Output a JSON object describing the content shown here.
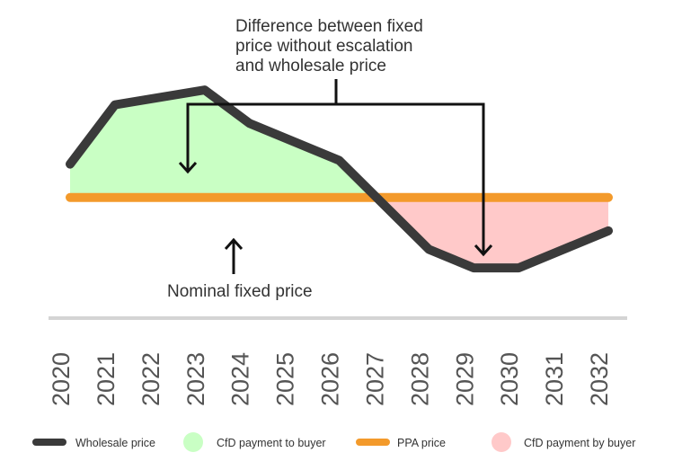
{
  "chart_data": {
    "type": "line",
    "title": "",
    "xlabel": "",
    "ylabel": "",
    "x": [
      "2020",
      "2021",
      "2022",
      "2023",
      "2024",
      "2025",
      "2026",
      "2027",
      "2028",
      "2029",
      "2030",
      "2031",
      "2032"
    ],
    "series": [
      {
        "name": "Wholesale price",
        "values": [
          73,
          89,
          91,
          93,
          84,
          79,
          74,
          62,
          50,
          45,
          45,
          50,
          55
        ]
      },
      {
        "name": "PPA price",
        "values": [
          64,
          64,
          64,
          64,
          64,
          64,
          64,
          64,
          64,
          64,
          64,
          64,
          64
        ]
      }
    ],
    "areas": [
      {
        "name": "CfD payment to buyer",
        "region": "wholesale price above PPA price"
      },
      {
        "name": "CfD payment by buyer",
        "region": "wholesale price below PPA price"
      }
    ],
    "ylim": [
      30,
      110
    ],
    "grid": false,
    "legend_position": "bottom",
    "annotations": {
      "difference": [
        "Difference between fixed",
        "price without escalation",
        "and wholesale price"
      ],
      "nominal": "Nominal fixed price"
    },
    "colors": {
      "wholesale": "#3a3a3a",
      "ppa": "#f39a2b",
      "cfd_to_buyer": "#c9ffc4",
      "cfd_by_buyer": "#ffc9c9",
      "axis": "#d4d4d4"
    }
  }
}
